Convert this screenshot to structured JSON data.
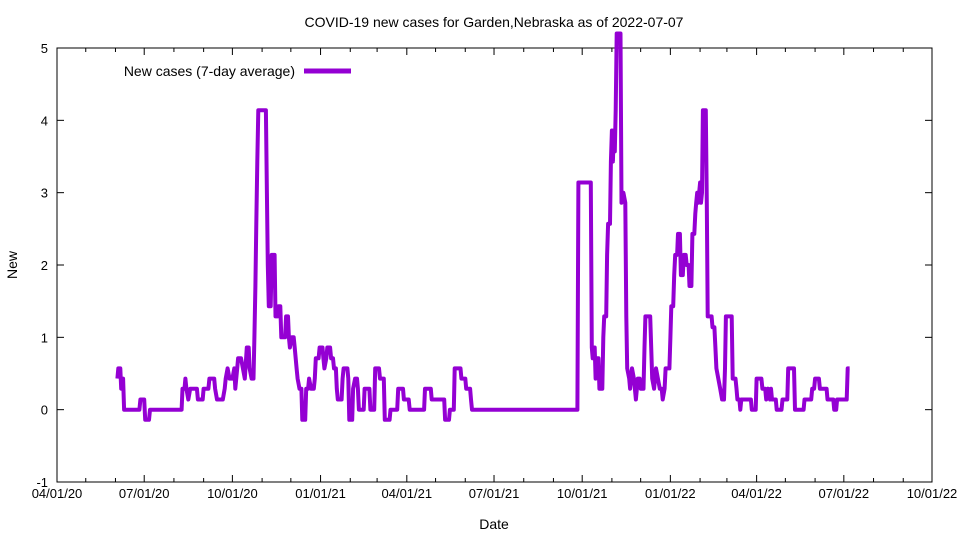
{
  "chart_data": {
    "type": "line",
    "title": "COVID-19 new cases for Garden,Nebraska as of 2022-07-07",
    "xlabel": "Date",
    "ylabel": "New",
    "ylim": [
      -1,
      5
    ],
    "y_ticks": [
      -1,
      0,
      1,
      2,
      3,
      4,
      5
    ],
    "grid": false,
    "legend_position": "top-left-inside",
    "line_color": "#9400d3",
    "axis_color": "#000000",
    "x_axis": {
      "range_days": [
        0,
        913
      ],
      "major_ticks": [
        {
          "day": 0,
          "label": "04/01/20"
        },
        {
          "day": 91,
          "label": "07/01/20"
        },
        {
          "day": 183,
          "label": "10/01/20"
        },
        {
          "day": 275,
          "label": "01/01/21"
        },
        {
          "day": 365,
          "label": "04/01/21"
        },
        {
          "day": 456,
          "label": "07/01/21"
        },
        {
          "day": 548,
          "label": "10/01/21"
        },
        {
          "day": 640,
          "label": "01/01/22"
        },
        {
          "day": 730,
          "label": "04/01/22"
        },
        {
          "day": 821,
          "label": "07/01/22"
        },
        {
          "day": 913,
          "label": "10/01/22"
        }
      ],
      "minor_tick_days": [
        30,
        61,
        122,
        153,
        214,
        244,
        306,
        334,
        395,
        426,
        487,
        518,
        579,
        609,
        671,
        699,
        760,
        791,
        852,
        883
      ]
    },
    "series": [
      {
        "name": "New cases (7-day average)",
        "points": [
          [
            63,
            0.43
          ],
          [
            64,
            0.57
          ],
          [
            66,
            0.57
          ],
          [
            67,
            0.29
          ],
          [
            68,
            0.43
          ],
          [
            69,
            0.43
          ],
          [
            70,
            0
          ],
          [
            86,
            0
          ],
          [
            87,
            0.14
          ],
          [
            91,
            0.14
          ],
          [
            92,
            -0.14
          ],
          [
            96,
            -0.14
          ],
          [
            97,
            0
          ],
          [
            130,
            0
          ],
          [
            131,
            0.29
          ],
          [
            133,
            0.29
          ],
          [
            134,
            0.43
          ],
          [
            135,
            0.29
          ],
          [
            137,
            0.14
          ],
          [
            139,
            0.29
          ],
          [
            146,
            0.29
          ],
          [
            147,
            0.14
          ],
          [
            152,
            0.14
          ],
          [
            153,
            0.29
          ],
          [
            158,
            0.29
          ],
          [
            159,
            0.43
          ],
          [
            164,
            0.43
          ],
          [
            165,
            0.29
          ],
          [
            167,
            0.14
          ],
          [
            173,
            0.14
          ],
          [
            175,
            0.29
          ],
          [
            176,
            0.43
          ],
          [
            178,
            0.57
          ],
          [
            180,
            0.43
          ],
          [
            183,
            0.43
          ],
          [
            185,
            0.57
          ],
          [
            186,
            0.29
          ],
          [
            188,
            0.57
          ],
          [
            189,
            0.71
          ],
          [
            192,
            0.71
          ],
          [
            194,
            0.57
          ],
          [
            196,
            0.43
          ],
          [
            198,
            0.86
          ],
          [
            200,
            0.86
          ],
          [
            201,
            0.57
          ],
          [
            203,
            0.43
          ],
          [
            205,
            0.43
          ],
          [
            206,
            1.0
          ],
          [
            207,
            1.71
          ],
          [
            208,
            2.57
          ],
          [
            209,
            3.43
          ],
          [
            210,
            4.14
          ],
          [
            218,
            4.14
          ],
          [
            219,
            3.0
          ],
          [
            220,
            2.0
          ],
          [
            221,
            1.43
          ],
          [
            223,
            1.43
          ],
          [
            224,
            2.14
          ],
          [
            227,
            2.14
          ],
          [
            228,
            1.29
          ],
          [
            230,
            1.29
          ],
          [
            231,
            1.43
          ],
          [
            233,
            1.43
          ],
          [
            234,
            1.0
          ],
          [
            238,
            1.0
          ],
          [
            239,
            1.29
          ],
          [
            241,
            1.29
          ],
          [
            242,
            1.0
          ],
          [
            243,
            0.86
          ],
          [
            245,
            1.0
          ],
          [
            247,
            1.0
          ],
          [
            248,
            0.86
          ],
          [
            250,
            0.57
          ],
          [
            251,
            0.43
          ],
          [
            253,
            0.29
          ],
          [
            255,
            0.29
          ],
          [
            256,
            -0.14
          ],
          [
            259,
            -0.14
          ],
          [
            260,
            0.29
          ],
          [
            262,
            0.29
          ],
          [
            263,
            0.43
          ],
          [
            265,
            0.29
          ],
          [
            268,
            0.29
          ],
          [
            269,
            0.43
          ],
          [
            270,
            0.71
          ],
          [
            273,
            0.71
          ],
          [
            274,
            0.86
          ],
          [
            277,
            0.86
          ],
          [
            278,
            0.71
          ],
          [
            279,
            0.57
          ],
          [
            281,
            0.71
          ],
          [
            282,
            0.86
          ],
          [
            285,
            0.86
          ],
          [
            286,
            0.71
          ],
          [
            288,
            0.71
          ],
          [
            289,
            0.57
          ],
          [
            291,
            0.57
          ],
          [
            292,
            0.29
          ],
          [
            293,
            0.14
          ],
          [
            297,
            0.14
          ],
          [
            298,
            0.43
          ],
          [
            299,
            0.57
          ],
          [
            303,
            0.57
          ],
          [
            304,
            0.43
          ],
          [
            305,
            -0.14
          ],
          [
            308,
            -0.14
          ],
          [
            309,
            0.29
          ],
          [
            311,
            0.43
          ],
          [
            313,
            0.43
          ],
          [
            314,
            0.29
          ],
          [
            315,
            0
          ],
          [
            320,
            0
          ],
          [
            321,
            0.29
          ],
          [
            326,
            0.29
          ],
          [
            327,
            0
          ],
          [
            331,
            0
          ],
          [
            332,
            0.57
          ],
          [
            336,
            0.57
          ],
          [
            337,
            0.43
          ],
          [
            341,
            0.43
          ],
          [
            342,
            -0.14
          ],
          [
            347,
            -0.14
          ],
          [
            348,
            0
          ],
          [
            355,
            0
          ],
          [
            356,
            0.29
          ],
          [
            361,
            0.29
          ],
          [
            362,
            0.14
          ],
          [
            367,
            0.14
          ],
          [
            368,
            0
          ],
          [
            383,
            0
          ],
          [
            384,
            0.29
          ],
          [
            390,
            0.29
          ],
          [
            391,
            0.14
          ],
          [
            404,
            0.14
          ],
          [
            405,
            -0.14
          ],
          [
            409,
            -0.14
          ],
          [
            410,
            0
          ],
          [
            414,
            0
          ],
          [
            415,
            0.57
          ],
          [
            421,
            0.57
          ],
          [
            422,
            0.43
          ],
          [
            426,
            0.43
          ],
          [
            427,
            0.29
          ],
          [
            431,
            0.29
          ],
          [
            432,
            0.14
          ],
          [
            433,
            0
          ],
          [
            543,
            0
          ],
          [
            544,
            3.14
          ],
          [
            557,
            3.14
          ],
          [
            558,
            0.86
          ],
          [
            559,
            0.71
          ],
          [
            561,
            0.86
          ],
          [
            562,
            0.43
          ],
          [
            563,
            0.71
          ],
          [
            565,
            0.71
          ],
          [
            566,
            0.29
          ],
          [
            569,
            0.29
          ],
          [
            570,
            1.0
          ],
          [
            571,
            1.29
          ],
          [
            573,
            1.29
          ],
          [
            574,
            2.14
          ],
          [
            575,
            2.57
          ],
          [
            577,
            2.57
          ],
          [
            578,
            3.43
          ],
          [
            579,
            3.86
          ],
          [
            580,
            3.43
          ],
          [
            581,
            3.86
          ],
          [
            582,
            3.57
          ],
          [
            583,
            4.14
          ],
          [
            584,
            5.2
          ],
          [
            588,
            5.2
          ],
          [
            589,
            2.86
          ],
          [
            591,
            3.0
          ],
          [
            593,
            2.86
          ],
          [
            594,
            1.29
          ],
          [
            595,
            0.57
          ],
          [
            597,
            0.43
          ],
          [
            598,
            0.29
          ],
          [
            600,
            0.57
          ],
          [
            602,
            0.43
          ],
          [
            604,
            0.14
          ],
          [
            606,
            0.43
          ],
          [
            608,
            0.43
          ],
          [
            609,
            0.29
          ],
          [
            612,
            0.29
          ],
          [
            613,
            0.86
          ],
          [
            614,
            1.29
          ],
          [
            619,
            1.29
          ],
          [
            620,
            0.86
          ],
          [
            621,
            0.43
          ],
          [
            623,
            0.29
          ],
          [
            625,
            0.57
          ],
          [
            627,
            0.43
          ],
          [
            629,
            0.29
          ],
          [
            631,
            0.29
          ],
          [
            632,
            0.14
          ],
          [
            634,
            0.29
          ],
          [
            635,
            0.57
          ],
          [
            639,
            0.57
          ],
          [
            640,
            1.0
          ],
          [
            641,
            1.43
          ],
          [
            643,
            1.43
          ],
          [
            644,
            1.86
          ],
          [
            645,
            2.14
          ],
          [
            647,
            2.14
          ],
          [
            648,
            2.43
          ],
          [
            650,
            2.43
          ],
          [
            651,
            1.86
          ],
          [
            653,
            1.86
          ],
          [
            654,
            2.14
          ],
          [
            656,
            2.14
          ],
          [
            657,
            2.0
          ],
          [
            659,
            2.0
          ],
          [
            660,
            1.71
          ],
          [
            662,
            1.71
          ],
          [
            663,
            2.43
          ],
          [
            665,
            2.43
          ],
          [
            666,
            2.71
          ],
          [
            667,
            2.86
          ],
          [
            668,
            3.0
          ],
          [
            669,
            2.86
          ],
          [
            671,
            3.14
          ],
          [
            672,
            2.86
          ],
          [
            673,
            3.0
          ],
          [
            674,
            4.14
          ],
          [
            677,
            4.14
          ],
          [
            678,
            2.86
          ],
          [
            679,
            1.29
          ],
          [
            683,
            1.29
          ],
          [
            684,
            1.14
          ],
          [
            686,
            1.14
          ],
          [
            687,
            0.86
          ],
          [
            688,
            0.57
          ],
          [
            690,
            0.43
          ],
          [
            692,
            0.29
          ],
          [
            694,
            0.14
          ],
          [
            696,
            0.14
          ],
          [
            697,
            0.57
          ],
          [
            698,
            1.29
          ],
          [
            704,
            1.29
          ],
          [
            705,
            0.43
          ],
          [
            708,
            0.43
          ],
          [
            709,
            0.29
          ],
          [
            710,
            0.14
          ],
          [
            712,
            0.14
          ],
          [
            713,
            0
          ],
          [
            714,
            0.14
          ],
          [
            724,
            0.14
          ],
          [
            725,
            0
          ],
          [
            729,
            0
          ],
          [
            730,
            0.43
          ],
          [
            735,
            0.43
          ],
          [
            736,
            0.29
          ],
          [
            739,
            0.29
          ],
          [
            740,
            0.14
          ],
          [
            742,
            0.29
          ],
          [
            744,
            0.14
          ],
          [
            745,
            0.29
          ],
          [
            746,
            0.14
          ],
          [
            750,
            0.14
          ],
          [
            751,
            0
          ],
          [
            756,
            0
          ],
          [
            757,
            0.14
          ],
          [
            762,
            0.14
          ],
          [
            763,
            0.57
          ],
          [
            769,
            0.57
          ],
          [
            770,
            0
          ],
          [
            779,
            0
          ],
          [
            780,
            0.14
          ],
          [
            787,
            0.14
          ],
          [
            788,
            0.29
          ],
          [
            790,
            0.29
          ],
          [
            791,
            0.43
          ],
          [
            795,
            0.43
          ],
          [
            796,
            0.29
          ],
          [
            803,
            0.29
          ],
          [
            804,
            0.14
          ],
          [
            810,
            0.14
          ],
          [
            811,
            0
          ],
          [
            813,
            0
          ],
          [
            814,
            0.14
          ],
          [
            824,
            0.14
          ],
          [
            825,
            0.57
          ],
          [
            827,
            0.57
          ]
        ]
      }
    ]
  }
}
